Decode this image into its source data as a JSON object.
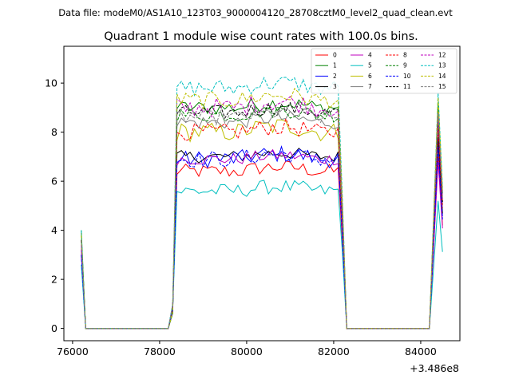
{
  "header": {
    "data_file": "Data file: modeM0/AS1A10_123T03_9000004120_28708cztM0_level2_quad_clean.evt"
  },
  "chart_data": {
    "type": "line",
    "title": "Quadrant 1 module wise count rates with 100.0s bins.",
    "xlabel": "",
    "ylabel": "",
    "x_offset_label": "+3.486e8",
    "xlim": [
      75800,
      84900
    ],
    "ylim": [
      -0.5,
      11.5
    ],
    "x_ticks": [
      76000,
      78000,
      80000,
      82000,
      84000
    ],
    "x_tick_labels": [
      "76000",
      "78000",
      "80000",
      "82000",
      "84000"
    ],
    "y_ticks": [
      0,
      2,
      4,
      6,
      8,
      10
    ],
    "y_tick_labels": [
      "0",
      "2",
      "4",
      "6",
      "8",
      "10"
    ],
    "grid": false,
    "legend_position": "top-right",
    "legend_columns": 4,
    "segments": [
      {
        "x_start": 76200,
        "x_end": 76300,
        "plateau": false
      },
      {
        "x_start": 76300,
        "x_end": 78300,
        "plateau": false,
        "zero": true
      },
      {
        "x_start": 78300,
        "x_end": 82200,
        "plateau": true
      },
      {
        "x_start": 82200,
        "x_end": 84200,
        "plateau": false,
        "zero": true
      },
      {
        "x_start": 84200,
        "x_end": 84500,
        "plateau": false
      }
    ],
    "series": [
      {
        "name": "0",
        "color": "#ff0000",
        "dash": "solid",
        "start": 3.6,
        "level": 6.4,
        "noise": 0.3,
        "end_peak": 7.0
      },
      {
        "name": "1",
        "color": "#008000",
        "dash": "solid",
        "start": 4.0,
        "level": 9.0,
        "noise": 0.3,
        "end_peak": 9.2
      },
      {
        "name": "2",
        "color": "#0000ff",
        "dash": "solid",
        "start": 3.0,
        "level": 6.9,
        "noise": 0.35,
        "end_peak": 7.6
      },
      {
        "name": "3",
        "color": "#000000",
        "dash": "solid",
        "start": 3.6,
        "level": 7.0,
        "noise": 0.25,
        "end_peak": 7.8
      },
      {
        "name": "4",
        "color": "#bf00bf",
        "dash": "solid",
        "start": 3.2,
        "level": 6.9,
        "noise": 0.25,
        "end_peak": 6.8
      },
      {
        "name": "5",
        "color": "#00bfbf",
        "dash": "solid",
        "start": 2.6,
        "level": 5.6,
        "noise": 0.3,
        "end_peak": 5.2
      },
      {
        "name": "6",
        "color": "#bfbf00",
        "dash": "solid",
        "start": 3.6,
        "level": 8.0,
        "noise": 0.4,
        "end_peak": 8.6
      },
      {
        "name": "7",
        "color": "#808080",
        "dash": "solid",
        "start": 3.6,
        "level": 8.4,
        "noise": 0.3,
        "end_peak": 8.4
      },
      {
        "name": "8",
        "color": "#ff0000",
        "dash": "dashed",
        "start": 3.6,
        "level": 8.0,
        "noise": 0.35,
        "end_peak": 8.2
      },
      {
        "name": "9",
        "color": "#008000",
        "dash": "dashed",
        "start": 3.8,
        "level": 8.7,
        "noise": 0.3,
        "end_peak": 9.0
      },
      {
        "name": "10",
        "color": "#0000ff",
        "dash": "dashed",
        "start": 3.0,
        "level": 6.9,
        "noise": 0.35,
        "end_peak": 7.4
      },
      {
        "name": "11",
        "color": "#000000",
        "dash": "dashed",
        "start": 3.6,
        "level": 8.8,
        "noise": 0.3,
        "end_peak": 8.6
      },
      {
        "name": "12",
        "color": "#bf00bf",
        "dash": "dashed",
        "start": 3.4,
        "level": 9.0,
        "noise": 0.4,
        "end_peak": 8.8
      },
      {
        "name": "13",
        "color": "#00bfbf",
        "dash": "dashed",
        "start": 4.0,
        "level": 9.8,
        "noise": 0.35,
        "end_peak": 9.6
      },
      {
        "name": "14",
        "color": "#bfbf00",
        "dash": "dashed",
        "start": 3.8,
        "level": 9.3,
        "noise": 0.35,
        "end_peak": 9.4
      },
      {
        "name": "15",
        "color": "#808080",
        "dash": "dashed",
        "start": 3.6,
        "level": 8.6,
        "noise": 0.3,
        "end_peak": 8.8
      }
    ]
  }
}
